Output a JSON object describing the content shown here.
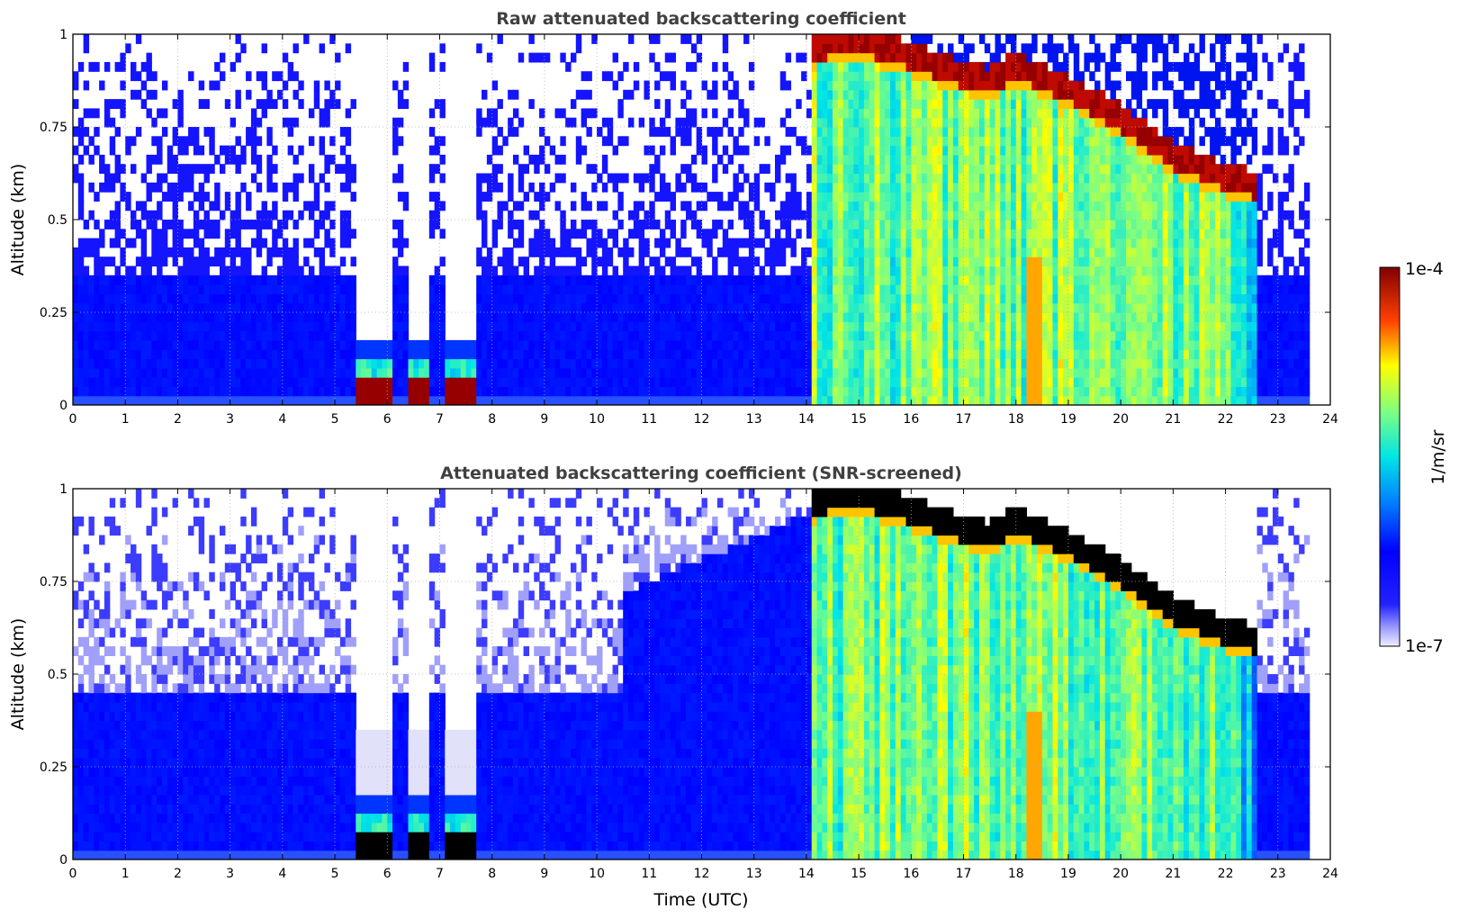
{
  "chart_data": [
    {
      "type": "heatmap",
      "title": "Raw attenuated backscattering coefficient",
      "xlabel": "",
      "ylabel": "Altitude (km)",
      "xlim": [
        0,
        24
      ],
      "ylim": [
        0,
        1
      ],
      "x_ticks": [
        "0",
        "1",
        "2",
        "3",
        "4",
        "5",
        "6",
        "7",
        "8",
        "9",
        "10",
        "11",
        "12",
        "13",
        "14",
        "15",
        "16",
        "17",
        "18",
        "19",
        "20",
        "21",
        "22",
        "23",
        "24"
      ],
      "y_ticks": [
        "0",
        "0.25",
        "0.5",
        "0.75",
        "1"
      ],
      "grid": true,
      "screened": false,
      "fog_layers": [
        {
          "start": 5.4,
          "end": 6.1,
          "altitude": 0.06
        },
        {
          "start": 6.45,
          "end": 6.85,
          "altitude": 0.05
        },
        {
          "start": 7.15,
          "end": 7.65,
          "altitude": 0.055
        }
      ],
      "cloud_base": [
        {
          "time": 14.1,
          "altitude": 0.93
        },
        {
          "time": 15.0,
          "altitude": 0.95
        },
        {
          "time": 16.0,
          "altitude": 0.91
        },
        {
          "time": 17.0,
          "altitude": 0.86
        },
        {
          "time": 17.5,
          "altitude": 0.84
        },
        {
          "time": 18.0,
          "altitude": 0.88
        },
        {
          "time": 19.0,
          "altitude": 0.82
        },
        {
          "time": 20.0,
          "altitude": 0.74
        },
        {
          "time": 21.0,
          "altitude": 0.64
        },
        {
          "time": 22.0,
          "altitude": 0.58
        },
        {
          "time": 22.6,
          "altitude": 0.56
        }
      ]
    },
    {
      "type": "heatmap",
      "title": "Attenuated backscattering coefficient (SNR-screened)",
      "xlabel": "Time (UTC)",
      "ylabel": "Altitude (km)",
      "xlim": [
        0,
        24
      ],
      "ylim": [
        0,
        1
      ],
      "x_ticks": [
        "0",
        "1",
        "2",
        "3",
        "4",
        "5",
        "6",
        "7",
        "8",
        "9",
        "10",
        "11",
        "12",
        "13",
        "14",
        "15",
        "16",
        "17",
        "18",
        "19",
        "20",
        "21",
        "22",
        "23",
        "24"
      ],
      "y_ticks": [
        "0",
        "0.25",
        "0.5",
        "0.75",
        "1"
      ],
      "grid": true,
      "screened": true,
      "fog_layers": [
        {
          "start": 5.4,
          "end": 6.1,
          "altitude": 0.05
        },
        {
          "start": 6.45,
          "end": 6.85,
          "altitude": 0.05
        },
        {
          "start": 7.15,
          "end": 7.65,
          "altitude": 0.05
        }
      ],
      "cloud_base": [
        {
          "time": 14.1,
          "altitude": 0.93
        },
        {
          "time": 15.0,
          "altitude": 0.95
        },
        {
          "time": 16.0,
          "altitude": 0.91
        },
        {
          "time": 17.0,
          "altitude": 0.86
        },
        {
          "time": 17.5,
          "altitude": 0.84
        },
        {
          "time": 18.0,
          "altitude": 0.88
        },
        {
          "time": 19.0,
          "altitude": 0.82
        },
        {
          "time": 20.0,
          "altitude": 0.74
        },
        {
          "time": 21.0,
          "altitude": 0.64
        },
        {
          "time": 22.0,
          "altitude": 0.58
        },
        {
          "time": 22.6,
          "altitude": 0.56
        }
      ]
    }
  ],
  "colorbar": {
    "label": "1/m/sr",
    "max_label": "1e-4",
    "min_label": "1e-7",
    "scale": "log",
    "colormap": "jet"
  }
}
